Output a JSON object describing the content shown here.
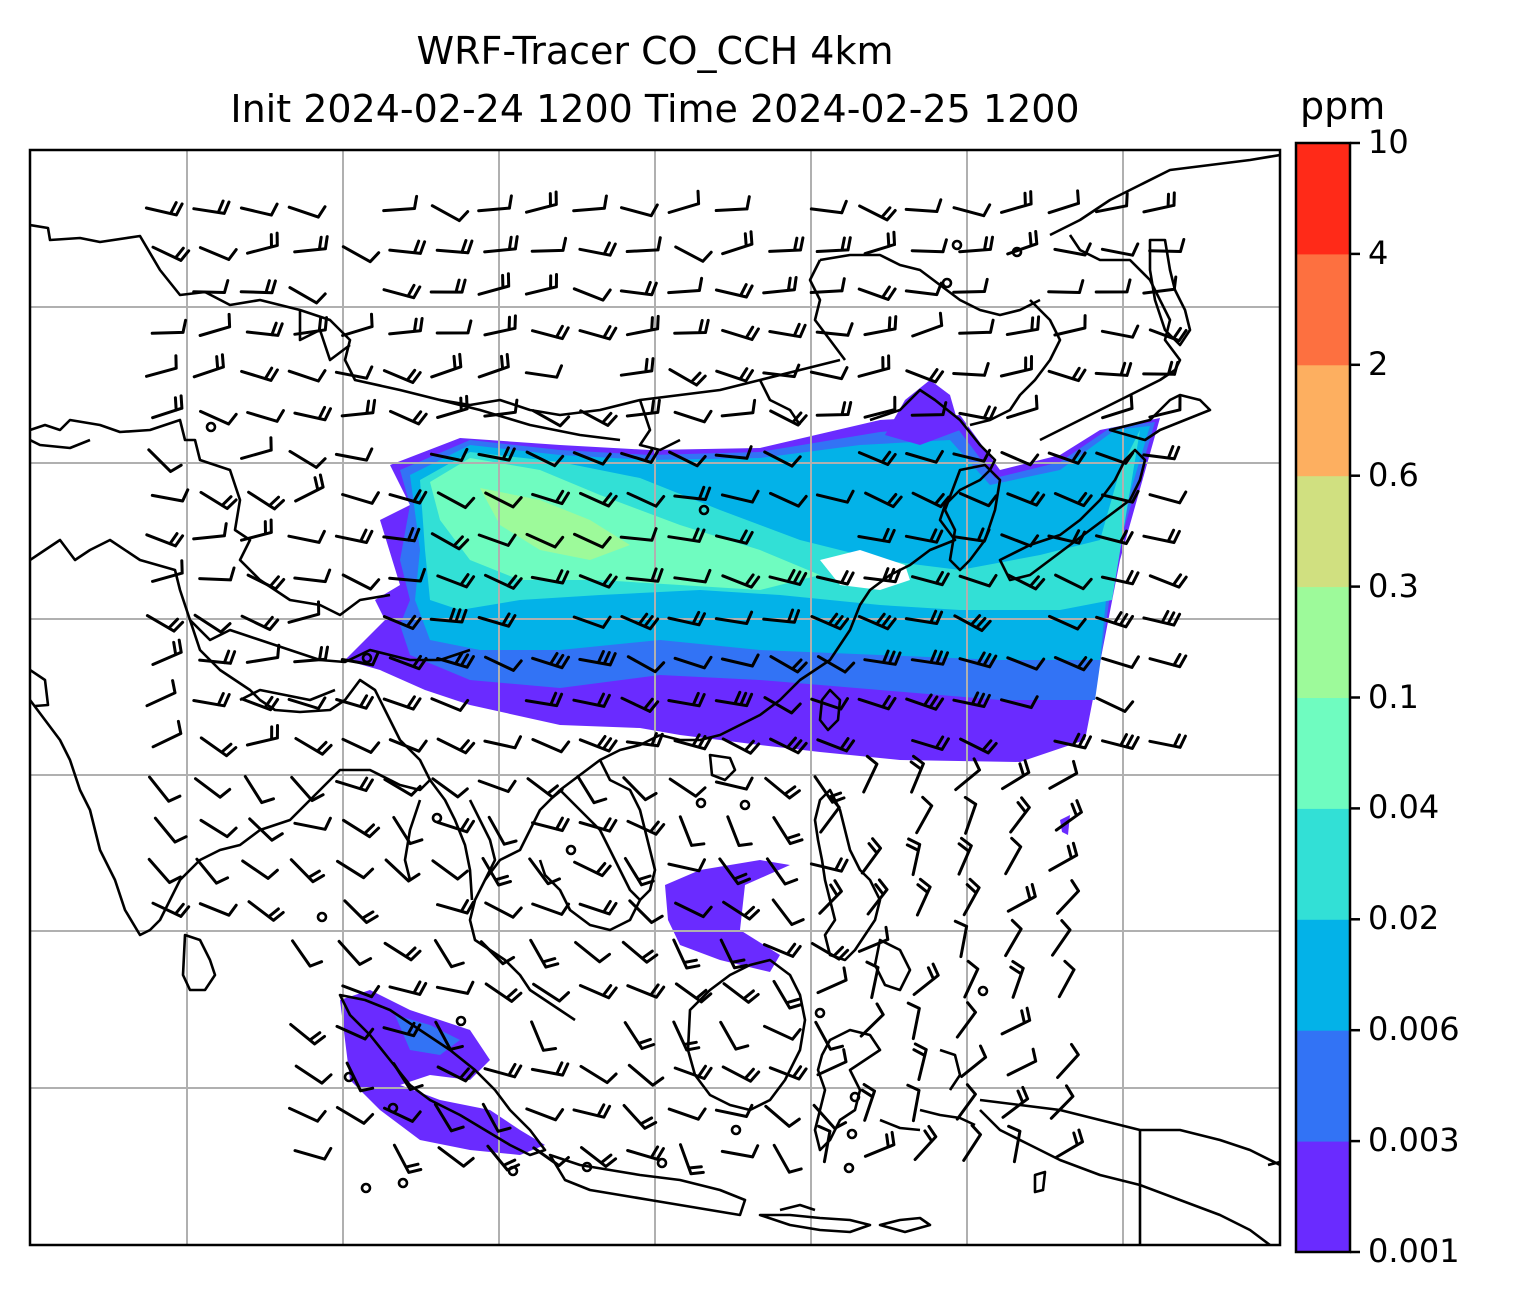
{
  "title": {
    "line1": "WRF-Tracer CO_CCH 4km",
    "line2": "Init 2024-02-24 1200 Time 2024-02-25 1200"
  },
  "colorbar": {
    "unit": "ppm",
    "levels": [
      "0.001",
      "0.003",
      "0.006",
      "0.02",
      "0.04",
      "0.1",
      "0.3",
      "0.6",
      "2",
      "4",
      "10"
    ],
    "colors": [
      "#6a2bff",
      "#3273f5",
      "#03b2e8",
      "#32e0d6",
      "#6ffcc0",
      "#9dfa9a",
      "#d0e080",
      "#fdaf60",
      "#fd7040",
      "#ff2a18"
    ]
  },
  "map": {
    "gridlines": true,
    "coastline_color": "#000000",
    "grid_color": "#b0b0b0",
    "wind_barbs": true
  }
}
